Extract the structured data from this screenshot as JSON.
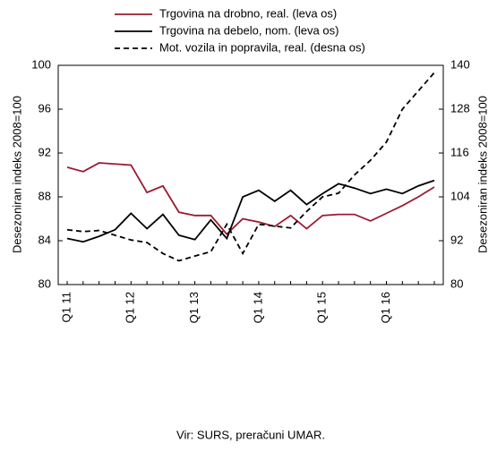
{
  "chart_data": {
    "type": "line",
    "categories": [
      "Q1 11",
      null,
      null,
      null,
      "Q1 12",
      null,
      null,
      null,
      "Q1 13",
      null,
      null,
      null,
      "Q1 14",
      null,
      null,
      null,
      "Q1 15",
      null,
      null,
      null,
      "Q1 16",
      null,
      null,
      null
    ],
    "series": [
      {
        "name": "Trgovina na drobno, real. (leva os)",
        "color": "#9b1b30",
        "dash": false,
        "values": [
          90.7,
          90.3,
          91.1,
          91.0,
          90.9,
          88.4,
          89.0,
          86.6,
          86.3,
          86.3,
          84.6,
          86.0,
          85.7,
          85.3,
          86.3,
          85.1,
          86.3,
          86.4,
          86.4,
          85.8,
          86.5,
          87.2,
          88.0,
          88.9
        ]
      },
      {
        "name": "Trgovina na debelo, nom. (leva os)",
        "color": "#000000",
        "dash": false,
        "values": [
          84.2,
          83.9,
          84.4,
          85.0,
          86.5,
          85.1,
          86.4,
          84.5,
          84.1,
          85.9,
          84.2,
          88.0,
          88.6,
          87.6,
          88.6,
          87.3,
          88.3,
          89.2,
          88.8,
          88.3,
          88.7,
          88.3,
          89.0,
          89.5
        ]
      },
      {
        "name": "Mot. vozila in popravila, real. (desna os)",
        "color": "#000000",
        "dash": true,
        "axis": "y2",
        "values": [
          95,
          94.5,
          94.8,
          93.5,
          92.2,
          91.5,
          88.5,
          86.5,
          87.8,
          89.0,
          96.5,
          88.5,
          96.5,
          96,
          95.5,
          100,
          104,
          105,
          110,
          114,
          119,
          128,
          133,
          138
        ]
      }
    ],
    "ylim": [
      80,
      100
    ],
    "yticks": [
      80,
      84,
      88,
      92,
      96,
      100
    ],
    "y2lim": [
      80,
      140
    ],
    "y2ticks": [
      80,
      92,
      104,
      116,
      128,
      140
    ],
    "ylabel": "Desezoniran indeks 2008=100",
    "y2label": "Desezoniran indeks 2008=100",
    "source": "Vir: SURS, preračuni UMAR."
  }
}
